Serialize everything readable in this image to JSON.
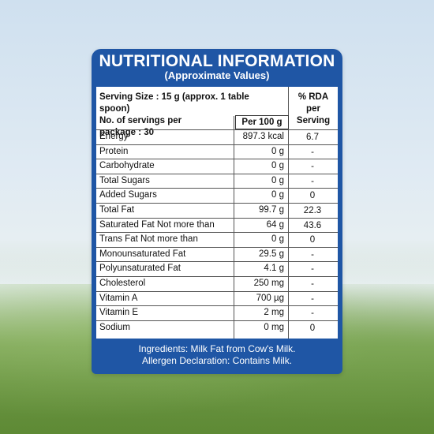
{
  "title": "NUTRITIONAL INFORMATION",
  "subtitle": "(Approximate Values)",
  "header": {
    "serving_line1": "Serving Size : 15 g (approx. 1 table spoon)",
    "serving_line2": "No. of servings per",
    "serving_line3": "package : 30",
    "per100": "Per 100 g",
    "rda_line1": "% RDA",
    "rda_line2": "per",
    "rda_line3": "Serving"
  },
  "rows": [
    {
      "name": "Energy",
      "value": "897.3 kcal",
      "rda": "6.7"
    },
    {
      "name": "Protein",
      "value": "0 g",
      "rda": "-"
    },
    {
      "name": "Carbohydrate",
      "value": "0 g",
      "rda": "-"
    },
    {
      "name": "Total Sugars",
      "value": "0 g",
      "rda": "-"
    },
    {
      "name": "Added Sugars",
      "value": "0 g",
      "rda": "0"
    },
    {
      "name": "Total Fat",
      "value": "99.7 g",
      "rda": "22.3"
    },
    {
      "name": "Saturated Fat Not more than",
      "value": "64 g",
      "rda": "43.6"
    },
    {
      "name": "Trans Fat Not more than",
      "value": "0 g",
      "rda": "0"
    },
    {
      "name": "Monounsaturated Fat",
      "value": "29.5 g",
      "rda": "-"
    },
    {
      "name": "Polyunsaturated Fat",
      "value": "4.1 g",
      "rda": "-"
    },
    {
      "name": "Cholesterol",
      "value": "250 mg",
      "rda": "-"
    },
    {
      "name": "Vitamin A",
      "value": "700 µg",
      "rda": "-"
    },
    {
      "name": "Vitamin E",
      "value": "2 mg",
      "rda": "-"
    },
    {
      "name": "Sodium",
      "value": "0 mg",
      "rda": "0"
    }
  ],
  "footer": {
    "ingredients": "Ingredients: Milk Fat from Cow's Milk.",
    "allergen": "Allergen Declaration: Contains Milk."
  },
  "colors": {
    "brand_blue": "#1f56a5",
    "table_bg": "#ffffff"
  }
}
